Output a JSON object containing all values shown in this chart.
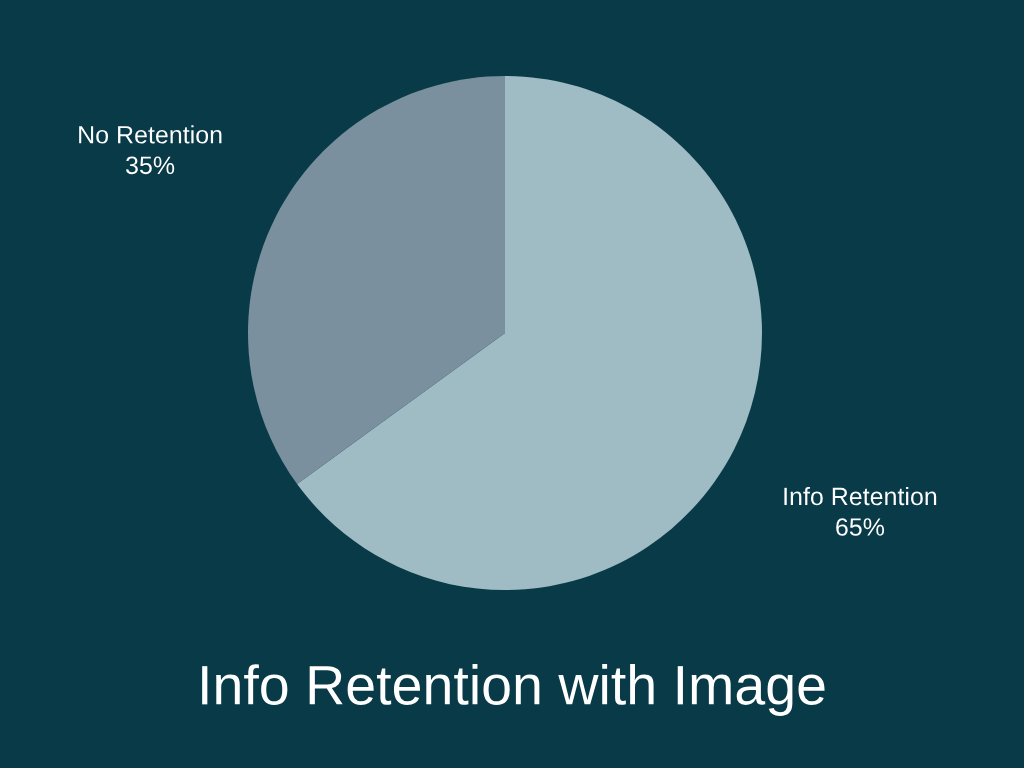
{
  "chart_data": {
    "type": "pie",
    "title": "Info Retention with Image",
    "categories": [
      "Info Retention",
      "No Retention"
    ],
    "values": [
      65,
      35
    ],
    "value_labels": [
      "65%",
      "35%"
    ],
    "colors": [
      "#9fbbc4",
      "#7b909e"
    ],
    "legend": false
  }
}
